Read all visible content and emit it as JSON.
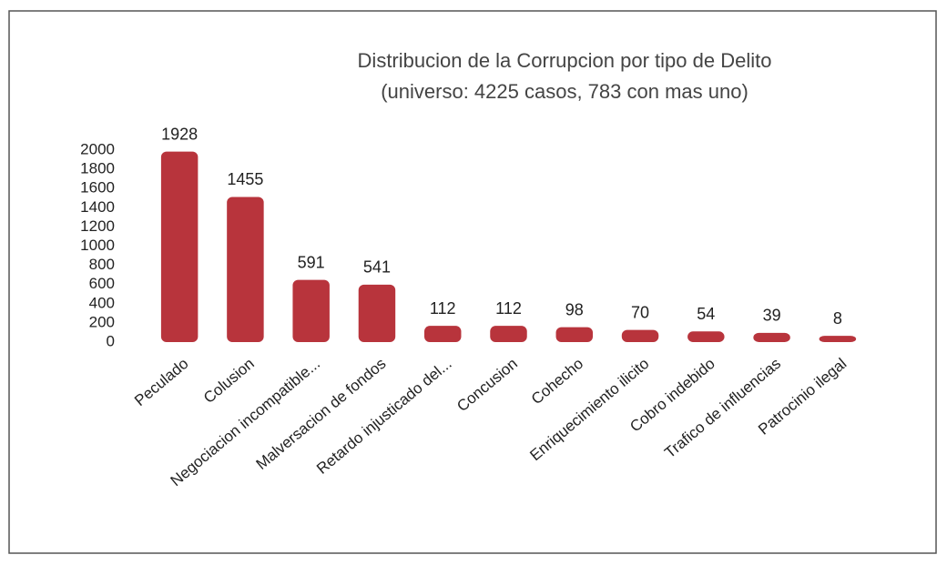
{
  "chart_data": {
    "type": "bar",
    "title": "Distribucion de la Corrupcion por tipo de Delito",
    "subtitle": "(universo: 4225 casos, 783 con mas uno)",
    "categories": [
      "Peculado",
      "Colusion",
      "Negociacion incompatible...",
      "Malversacion de fondos",
      "Retardo injusticado del...",
      "Concusion",
      "Cohecho",
      "Enriquecimiento ilicito",
      "Cobro indebido",
      "Trafico de influencias",
      "Patrocinio ilegal"
    ],
    "values": [
      1928,
      1455,
      591,
      541,
      112,
      112,
      98,
      70,
      54,
      39,
      8
    ],
    "color": "#b8343c",
    "ylim": [
      0,
      2000
    ],
    "yticks": [
      0,
      200,
      400,
      600,
      800,
      1000,
      1200,
      1400,
      1600,
      1800,
      2000
    ],
    "grid": false
  }
}
